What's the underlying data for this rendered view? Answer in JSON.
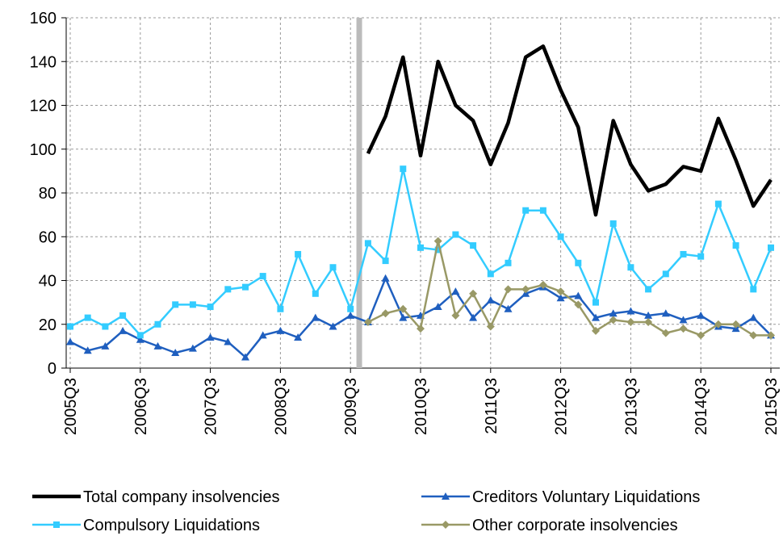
{
  "chart_data": {
    "type": "line",
    "categories": [
      "2005Q3",
      null,
      null,
      null,
      "2006Q3",
      null,
      null,
      null,
      "2007Q3",
      null,
      null,
      null,
      "2008Q3",
      null,
      null,
      null,
      "2009Q3",
      null,
      null,
      null,
      "2010Q3",
      null,
      null,
      null,
      "2011Q3",
      null,
      null,
      null,
      "2012Q3",
      null,
      null,
      null,
      "2013Q3",
      null,
      null,
      null,
      "2014Q3",
      null,
      null,
      null,
      "2015Q3"
    ],
    "series": [
      {
        "name": "Total company insolvencies",
        "color": "#000000",
        "marker": "none",
        "values": [
          null,
          null,
          null,
          null,
          null,
          null,
          null,
          null,
          null,
          null,
          null,
          null,
          null,
          null,
          null,
          null,
          null,
          98,
          115,
          142,
          97,
          140,
          120,
          113,
          93,
          112,
          142,
          147,
          127,
          110,
          70,
          113,
          93,
          81,
          84,
          92,
          90,
          114,
          95,
          74,
          86
        ]
      },
      {
        "name": "Creditors Voluntary Liquidations",
        "color": "#1f5fbf",
        "marker": "triangle",
        "values": [
          12,
          8,
          10,
          17,
          13,
          10,
          7,
          9,
          14,
          12,
          5,
          15,
          17,
          14,
          23,
          19,
          24,
          21,
          41,
          23,
          24,
          28,
          35,
          23,
          31,
          27,
          34,
          37,
          32,
          33,
          23,
          25,
          26,
          24,
          25,
          22,
          24,
          19,
          18,
          23,
          15
        ]
      },
      {
        "name": "Compulsory Liquidations",
        "color": "#33ccff",
        "marker": "square",
        "values": [
          19,
          23,
          19,
          24,
          15,
          20,
          29,
          29,
          28,
          36,
          37,
          42,
          27,
          52,
          34,
          46,
          27,
          57,
          49,
          91,
          55,
          54,
          61,
          56,
          43,
          48,
          72,
          72,
          60,
          48,
          30,
          66,
          46,
          36,
          43,
          52,
          51,
          75,
          56,
          36,
          55
        ]
      },
      {
        "name": "Other corporate insolvencies",
        "color": "#999966",
        "marker": "diamond",
        "values": [
          null,
          null,
          null,
          null,
          null,
          null,
          null,
          null,
          null,
          null,
          null,
          null,
          null,
          null,
          null,
          null,
          null,
          21,
          25,
          27,
          18,
          58,
          24,
          34,
          19,
          36,
          36,
          38,
          35,
          29,
          17,
          22,
          21,
          21,
          16,
          18,
          15,
          20,
          20,
          15,
          15
        ]
      }
    ],
    "ylim": [
      0,
      160
    ],
    "yticks": [
      0,
      20,
      40,
      60,
      80,
      100,
      120,
      140,
      160
    ],
    "grid": true
  }
}
